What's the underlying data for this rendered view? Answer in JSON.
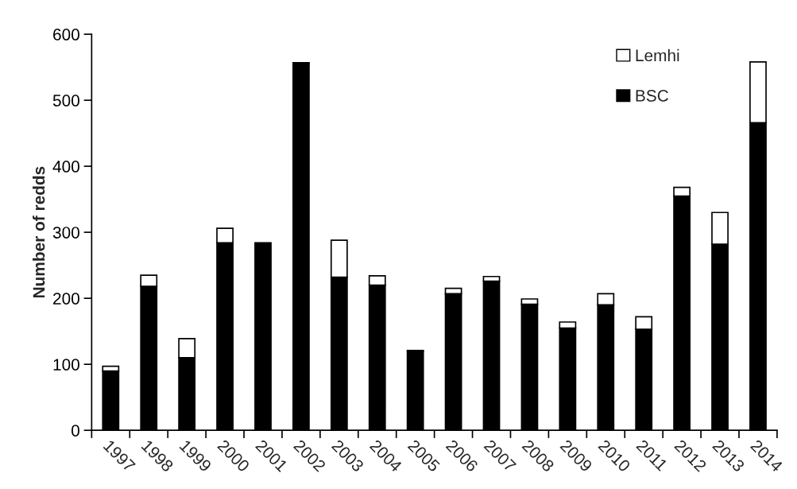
{
  "chart_data": {
    "type": "bar",
    "ylabel": "Number of redds",
    "stacked": true,
    "categories": [
      "1997",
      "1998",
      "1999",
      "2000",
      "2001",
      "2002",
      "2003",
      "2004",
      "2005",
      "2006",
      "2007",
      "2008",
      "2009",
      "2010",
      "2011",
      "2012",
      "2013",
      "2014"
    ],
    "series": [
      {
        "name": "BSC",
        "color": "#000000",
        "values": [
          90,
          218,
          110,
          284,
          284,
          555,
          232,
          220,
          120,
          207,
          226,
          191,
          155,
          190,
          153,
          355,
          282,
          466
        ]
      },
      {
        "name": "Lemhi",
        "color": "#ffffff",
        "values": [
          7,
          17,
          29,
          22,
          null,
          2,
          56,
          14,
          1,
          8,
          7,
          8,
          9,
          17,
          19,
          13,
          48,
          92
        ]
      }
    ],
    "ylim": [
      0,
      600
    ],
    "yticks": [
      0,
      100,
      200,
      300,
      400,
      500,
      600
    ],
    "grid": false,
    "legend": "top right"
  }
}
